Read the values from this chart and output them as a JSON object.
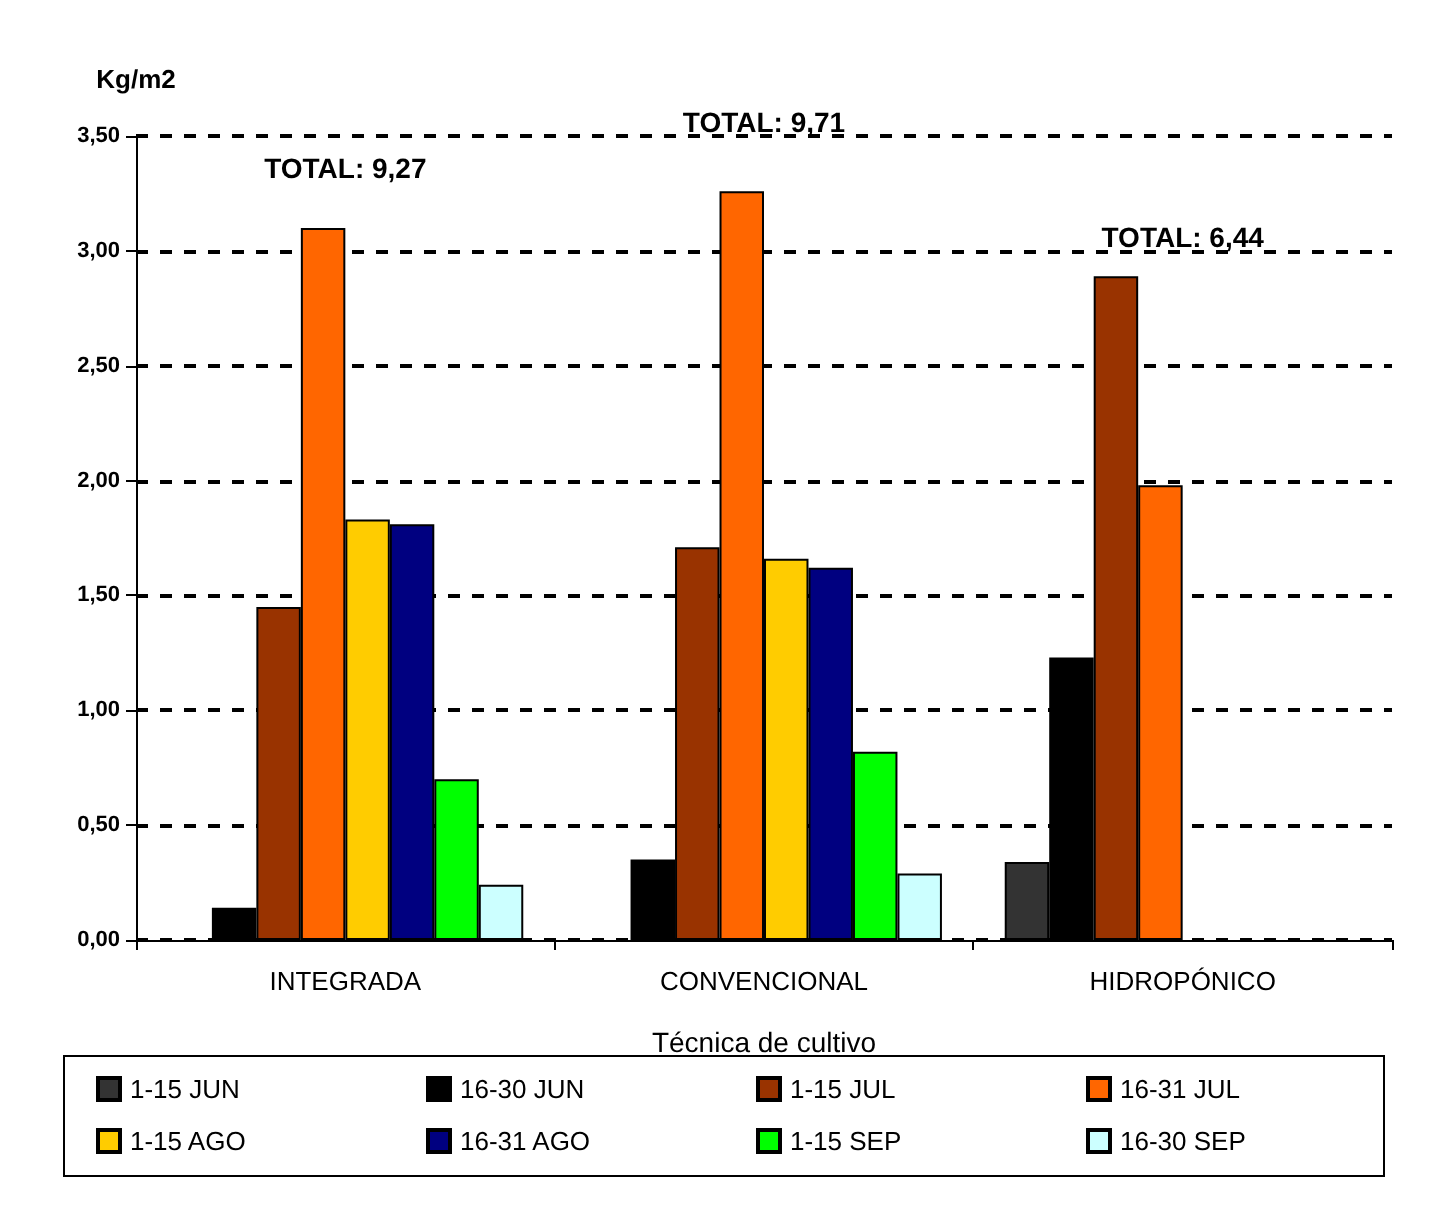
{
  "chart_data": {
    "type": "bar",
    "ylabel": "Kg/m2",
    "xlabel": "Técnica de cultivo",
    "categories": [
      "INTEGRADA",
      "CONVENCIONAL",
      "HIDROPÓNICO"
    ],
    "series": [
      {
        "name": "1-15 JUN",
        "color": "#333333",
        "values": [
          null,
          null,
          0.34
        ]
      },
      {
        "name": "16-30 JUN",
        "color": "#000000",
        "values": [
          0.14,
          0.35,
          1.23
        ]
      },
      {
        "name": "1-15 JUL",
        "color": "#993300",
        "values": [
          1.45,
          1.71,
          2.89
        ]
      },
      {
        "name": "16-31 JUL",
        "color": "#ff6600",
        "values": [
          3.1,
          3.26,
          1.98
        ]
      },
      {
        "name": "1-15 AGO",
        "color": "#ffcc00",
        "values": [
          1.83,
          1.66,
          null
        ]
      },
      {
        "name": "16-31 AGO",
        "color": "#000080",
        "values": [
          1.81,
          1.62,
          null
        ]
      },
      {
        "name": "1-15 SEP",
        "color": "#00ff00",
        "values": [
          0.7,
          0.82,
          null
        ]
      },
      {
        "name": "16-30 SEP",
        "color": "#ccffff",
        "values": [
          0.24,
          0.29,
          null
        ]
      }
    ],
    "ylim": [
      0,
      3.5
    ],
    "yticks": [
      {
        "value": 0,
        "label": "0,00"
      },
      {
        "value": 0.5,
        "label": "0,50"
      },
      {
        "value": 1,
        "label": "1,00"
      },
      {
        "value": 1.5,
        "label": "1,50"
      },
      {
        "value": 2,
        "label": "2,00"
      },
      {
        "value": 2.5,
        "label": "2,50"
      },
      {
        "value": 3,
        "label": "3,00"
      },
      {
        "value": 3.5,
        "label": "3,50"
      }
    ],
    "grid": "y",
    "line_style": "dashed",
    "legend": "bottom",
    "annotations": [
      "TOTAL: 9,27",
      "TOTAL: 9,71",
      "TOTAL: 6,44"
    ]
  }
}
